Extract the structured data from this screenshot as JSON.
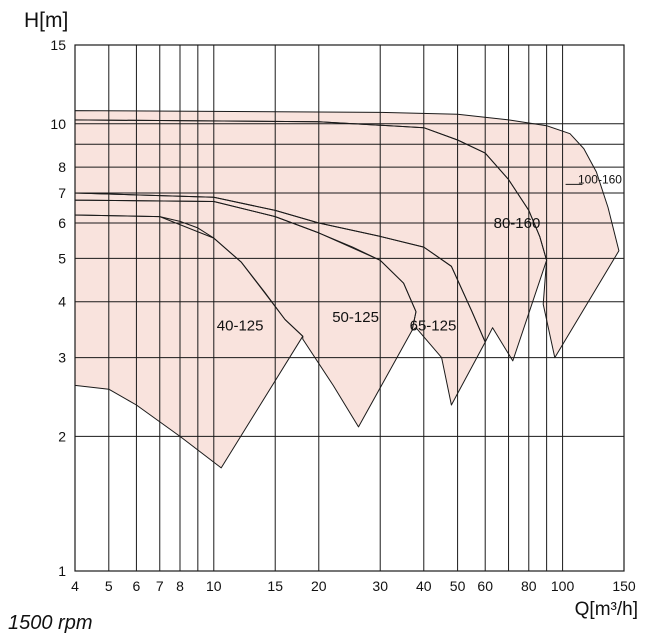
{
  "chart_data": {
    "type": "area",
    "title": "",
    "ylabel": "H[m]",
    "xlabel": "Q[m³/h]",
    "note": "1500 rpm",
    "xscale": "log",
    "yscale": "log",
    "xlim": [
      4,
      150
    ],
    "ylim": [
      1,
      15
    ],
    "grid": true,
    "x_ticks": [
      4,
      5,
      6,
      7,
      8,
      10,
      15,
      20,
      30,
      40,
      50,
      60,
      80,
      100,
      150
    ],
    "y_ticks": [
      1,
      2,
      3,
      4,
      5,
      6,
      7,
      8,
      10,
      15
    ],
    "x_grid": [
      4,
      5,
      6,
      7,
      8,
      9,
      10,
      15,
      20,
      30,
      40,
      50,
      60,
      70,
      80,
      90,
      100,
      150
    ],
    "y_grid": [
      1,
      2,
      3,
      4,
      5,
      6,
      7,
      8,
      9,
      10,
      15
    ],
    "fill_color": "#f9e3dd",
    "line_color": "#1a1a1a",
    "series": [
      {
        "name": "40-125",
        "label_at": [
          11.9,
          3.45
        ],
        "outline": [
          [
            4,
            6.25
          ],
          [
            7,
            6.2
          ],
          [
            8,
            6.05
          ],
          [
            9,
            5.85
          ],
          [
            10,
            5.55
          ],
          [
            12,
            4.9
          ],
          [
            14,
            4.2
          ],
          [
            16,
            3.65
          ],
          [
            18,
            3.35
          ],
          [
            10.5,
            1.7
          ],
          [
            8,
            2.0
          ],
          [
            6,
            2.35
          ],
          [
            5,
            2.55
          ],
          [
            4,
            2.6
          ]
        ]
      },
      {
        "name": "50-125",
        "label_at": [
          25.5,
          3.6
        ],
        "outline": [
          [
            4,
            6.75
          ],
          [
            10,
            6.7
          ],
          [
            15,
            6.2
          ],
          [
            20,
            5.7
          ],
          [
            25,
            5.3
          ],
          [
            30,
            4.95
          ],
          [
            35,
            4.4
          ],
          [
            38,
            3.8
          ],
          [
            37,
            3.45
          ],
          [
            26,
            2.1
          ],
          [
            22,
            2.6
          ],
          [
            18,
            3.3
          ],
          [
            18,
            3.35
          ],
          [
            16,
            3.65
          ],
          [
            12,
            4.9
          ],
          [
            10,
            5.55
          ],
          [
            7,
            6.2
          ],
          [
            4,
            6.25
          ]
        ]
      },
      {
        "name": "65-125",
        "label_at": [
          42.5,
          3.45
        ],
        "outline": [
          [
            4,
            7.0
          ],
          [
            10,
            6.85
          ],
          [
            15,
            6.4
          ],
          [
            20,
            6.0
          ],
          [
            30,
            5.6
          ],
          [
            40,
            5.3
          ],
          [
            48,
            4.8
          ],
          [
            55,
            3.8
          ],
          [
            60,
            3.25
          ],
          [
            48,
            2.35
          ],
          [
            45,
            3.0
          ],
          [
            38,
            3.5
          ],
          [
            37,
            3.45
          ],
          [
            38,
            3.8
          ],
          [
            35,
            4.4
          ],
          [
            30,
            4.95
          ],
          [
            20,
            5.7
          ],
          [
            15,
            6.2
          ],
          [
            10,
            6.7
          ],
          [
            4,
            6.75
          ]
        ]
      },
      {
        "name": "80-160",
        "label_at": [
          74,
          5.85
        ],
        "outline": [
          [
            4,
            10.2
          ],
          [
            20,
            10.1
          ],
          [
            40,
            9.8
          ],
          [
            50,
            9.2
          ],
          [
            60,
            8.6
          ],
          [
            70,
            7.5
          ],
          [
            80,
            6.4
          ],
          [
            86,
            5.6
          ],
          [
            90,
            4.95
          ],
          [
            72,
            2.95
          ],
          [
            63,
            3.5
          ],
          [
            60,
            3.25
          ],
          [
            55,
            3.8
          ],
          [
            48,
            4.8
          ],
          [
            40,
            5.3
          ],
          [
            30,
            5.6
          ],
          [
            20,
            6.0
          ],
          [
            15,
            6.4
          ],
          [
            10,
            6.85
          ],
          [
            4,
            7.0
          ]
        ]
      },
      {
        "name": "100-160",
        "label_at": [
          128,
          7.35
        ],
        "outline": [
          [
            4,
            10.7
          ],
          [
            30,
            10.6
          ],
          [
            50,
            10.5
          ],
          [
            70,
            10.2
          ],
          [
            90,
            9.9
          ],
          [
            105,
            9.5
          ],
          [
            115,
            8.8
          ],
          [
            125,
            7.8
          ],
          [
            135,
            6.5
          ],
          [
            145,
            5.2
          ],
          [
            95,
            3.0
          ],
          [
            88,
            3.95
          ],
          [
            90,
            4.95
          ],
          [
            86,
            5.6
          ],
          [
            80,
            6.4
          ],
          [
            70,
            7.5
          ],
          [
            60,
            8.6
          ],
          [
            50,
            9.2
          ],
          [
            40,
            9.8
          ],
          [
            20,
            10.1
          ],
          [
            4,
            10.2
          ]
        ]
      }
    ],
    "label_leader": {
      "series": "100-160",
      "from": [
        102,
        7.32
      ],
      "to": [
        114,
        7.32
      ]
    }
  }
}
